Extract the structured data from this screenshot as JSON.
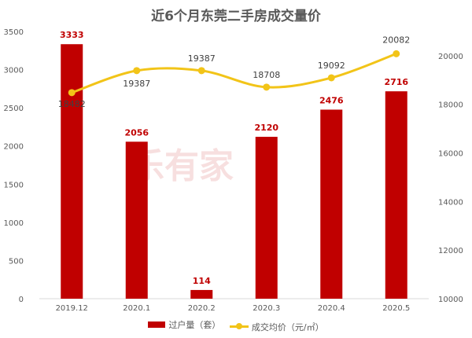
{
  "chart_data": {
    "type": "bar+line",
    "title": "近6个月东莞二手房成交量价",
    "categories": [
      "2019.12",
      "2020.1",
      "2020.2",
      "2020.3",
      "2020.4",
      "2020.5"
    ],
    "series": [
      {
        "name": "过户量（套）",
        "type": "bar",
        "axis": "left",
        "color": "#c00000",
        "values": [
          3333,
          2056,
          114,
          2120,
          2476,
          2716
        ]
      },
      {
        "name": "成交均价（元/㎡）",
        "type": "line",
        "axis": "right",
        "color": "#f2c418",
        "values": [
          18482,
          19387,
          19387,
          18708,
          19092,
          20082
        ]
      }
    ],
    "left_axis": {
      "ylim": [
        0,
        3500
      ],
      "ticks": [
        0,
        500,
        1000,
        1500,
        2000,
        2500,
        3000,
        3500
      ]
    },
    "right_axis": {
      "ylim": [
        10000,
        21000
      ],
      "ticks": [
        10000,
        12000,
        14000,
        16000,
        18000,
        20000
      ]
    },
    "grid": false,
    "legend": "bottom"
  },
  "watermark": "乐有家 Leyoujia.com"
}
